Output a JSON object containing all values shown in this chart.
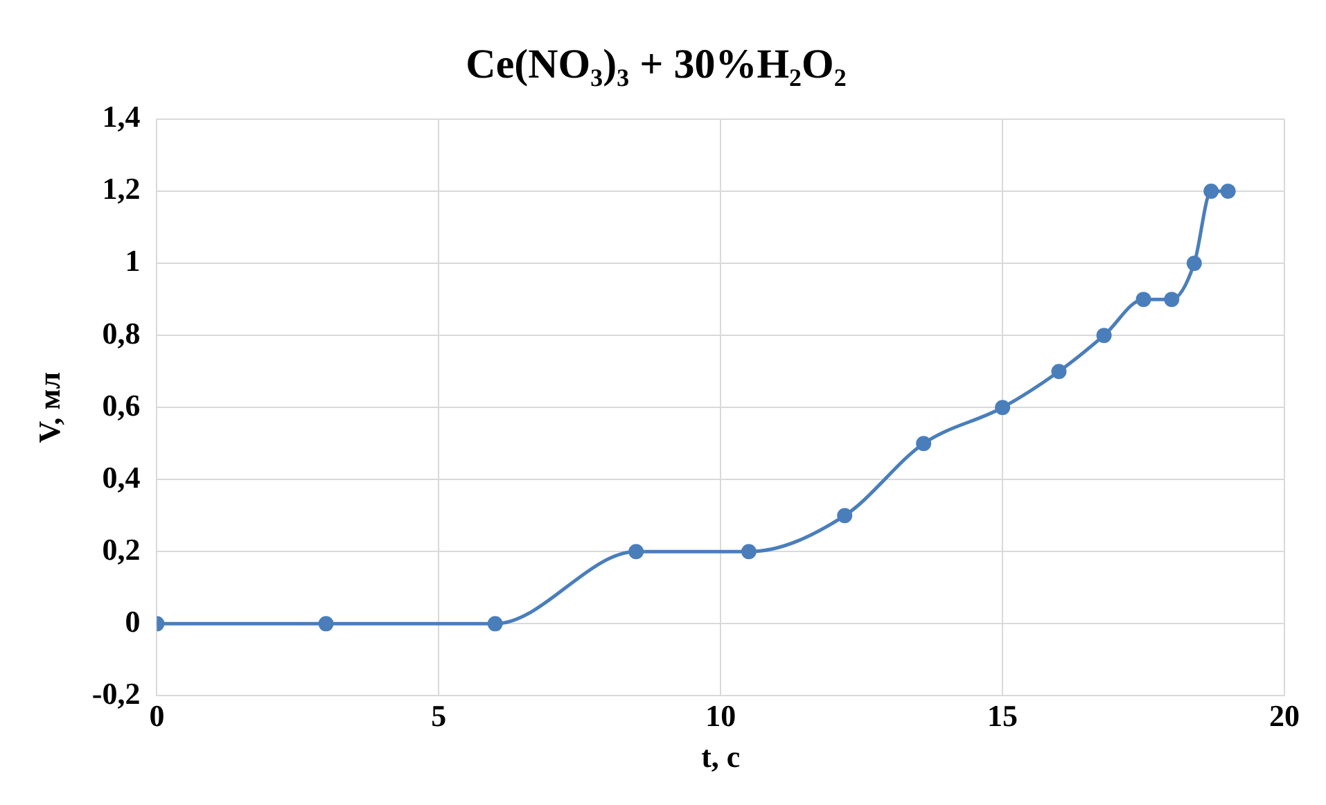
{
  "chart_data": {
    "type": "line",
    "title": "Ce(NO₃)₃ + 30%H₂O₂",
    "xlabel": "t, c",
    "ylabel": "V, мл",
    "x": [
      0,
      3,
      6,
      8.5,
      10.5,
      12.2,
      13.6,
      15,
      16,
      16.8,
      17.5,
      18,
      18.4,
      18.7,
      19
    ],
    "series": [
      {
        "color": "#4a7ebb",
        "values": [
          0,
          0,
          0,
          0.2,
          0.2,
          0.3,
          0.5,
          0.6,
          0.7,
          0.8,
          0.9,
          0.9,
          1.0,
          1.2,
          1.2
        ]
      }
    ],
    "xlim": [
      0,
      20
    ],
    "xticks": [
      0,
      5,
      10,
      15,
      20
    ],
    "ylim": [
      -0.2,
      1.4
    ],
    "yticks": [
      {
        "value": -0.2,
        "label": "-0,2"
      },
      0,
      {
        "value": 0.2,
        "label": "0,2"
      },
      {
        "value": 0.4,
        "label": "0,4"
      },
      {
        "value": 0.6,
        "label": "0,6"
      },
      {
        "value": 0.8,
        "label": "0,8"
      },
      1,
      {
        "value": 1.2,
        "label": "1,2"
      },
      {
        "value": 1.4,
        "label": "1,4"
      }
    ],
    "grid": true,
    "legend": false,
    "marker": "circle",
    "line_style": "solid"
  }
}
